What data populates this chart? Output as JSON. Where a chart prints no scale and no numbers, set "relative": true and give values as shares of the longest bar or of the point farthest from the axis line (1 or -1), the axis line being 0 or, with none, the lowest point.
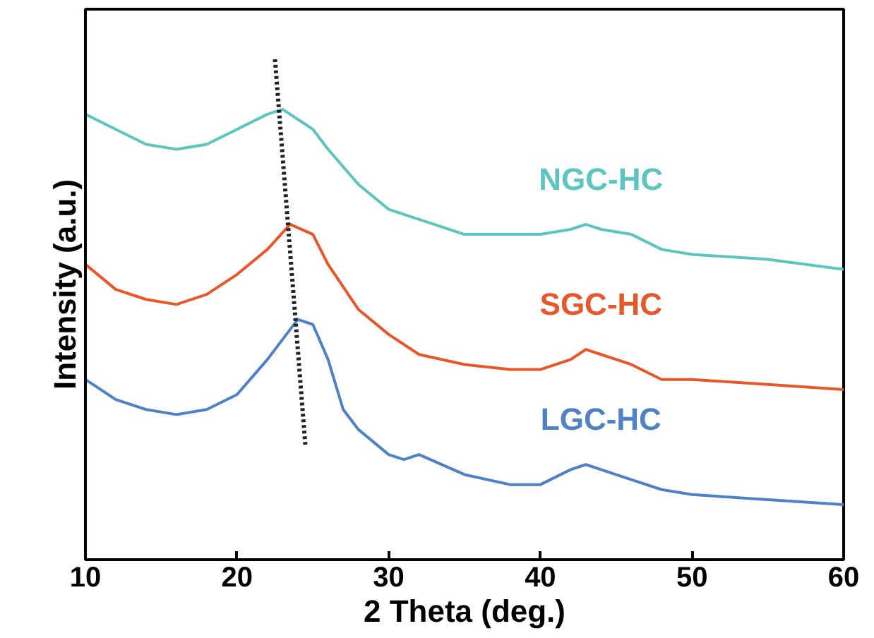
{
  "chart_data": {
    "type": "line",
    "xlabel": "2 Theta (deg.)",
    "ylabel": "Intensity (a.u.)",
    "relative": true,
    "xlim": [
      10,
      60
    ],
    "xticks": [
      10,
      20,
      30,
      40,
      50,
      60
    ],
    "grid": false,
    "marker": "none",
    "line_style": "solid",
    "tick_labels": "x",
    "series": [
      {
        "name": "NGC-HC",
        "color": "#5cc5c0",
        "x": [
          10,
          12,
          14,
          16,
          18,
          20,
          22,
          23,
          24,
          25,
          26,
          28,
          30,
          32,
          35,
          38,
          40,
          42,
          43,
          44,
          46,
          48,
          50,
          55,
          60
        ],
        "values": [
          0.89,
          0.86,
          0.83,
          0.82,
          0.83,
          0.86,
          0.89,
          0.9,
          0.88,
          0.86,
          0.82,
          0.75,
          0.7,
          0.68,
          0.65,
          0.65,
          0.65,
          0.66,
          0.67,
          0.66,
          0.65,
          0.62,
          0.61,
          0.6,
          0.58
        ]
      },
      {
        "name": "SGC-HC",
        "color": "#e8572a",
        "x": [
          10,
          12,
          14,
          16,
          18,
          20,
          22,
          23.5,
          25,
          26,
          28,
          30,
          32,
          35,
          38,
          40,
          42,
          43,
          44,
          46,
          48,
          50,
          55,
          60
        ],
        "values": [
          0.59,
          0.54,
          0.52,
          0.51,
          0.53,
          0.57,
          0.62,
          0.67,
          0.65,
          0.59,
          0.5,
          0.45,
          0.41,
          0.39,
          0.38,
          0.38,
          0.4,
          0.42,
          0.41,
          0.39,
          0.36,
          0.36,
          0.35,
          0.34
        ]
      },
      {
        "name": "LGC-HC",
        "color": "#4f81c7",
        "x": [
          10,
          12,
          14,
          16,
          18,
          20,
          22,
          24,
          25,
          26,
          27,
          28,
          30,
          31,
          32,
          35,
          38,
          40,
          42,
          43,
          44,
          46,
          48,
          50,
          55,
          60
        ],
        "values": [
          0.36,
          0.32,
          0.3,
          0.29,
          0.3,
          0.33,
          0.4,
          0.48,
          0.47,
          0.4,
          0.3,
          0.26,
          0.21,
          0.2,
          0.21,
          0.17,
          0.15,
          0.15,
          0.18,
          0.19,
          0.18,
          0.16,
          0.14,
          0.13,
          0.12,
          0.11
        ]
      },
      {
        "color": "#222222",
        "line_style": "dotted",
        "x": [
          22.5,
          24.5
        ],
        "values": [
          1.0,
          0.23
        ]
      }
    ]
  }
}
